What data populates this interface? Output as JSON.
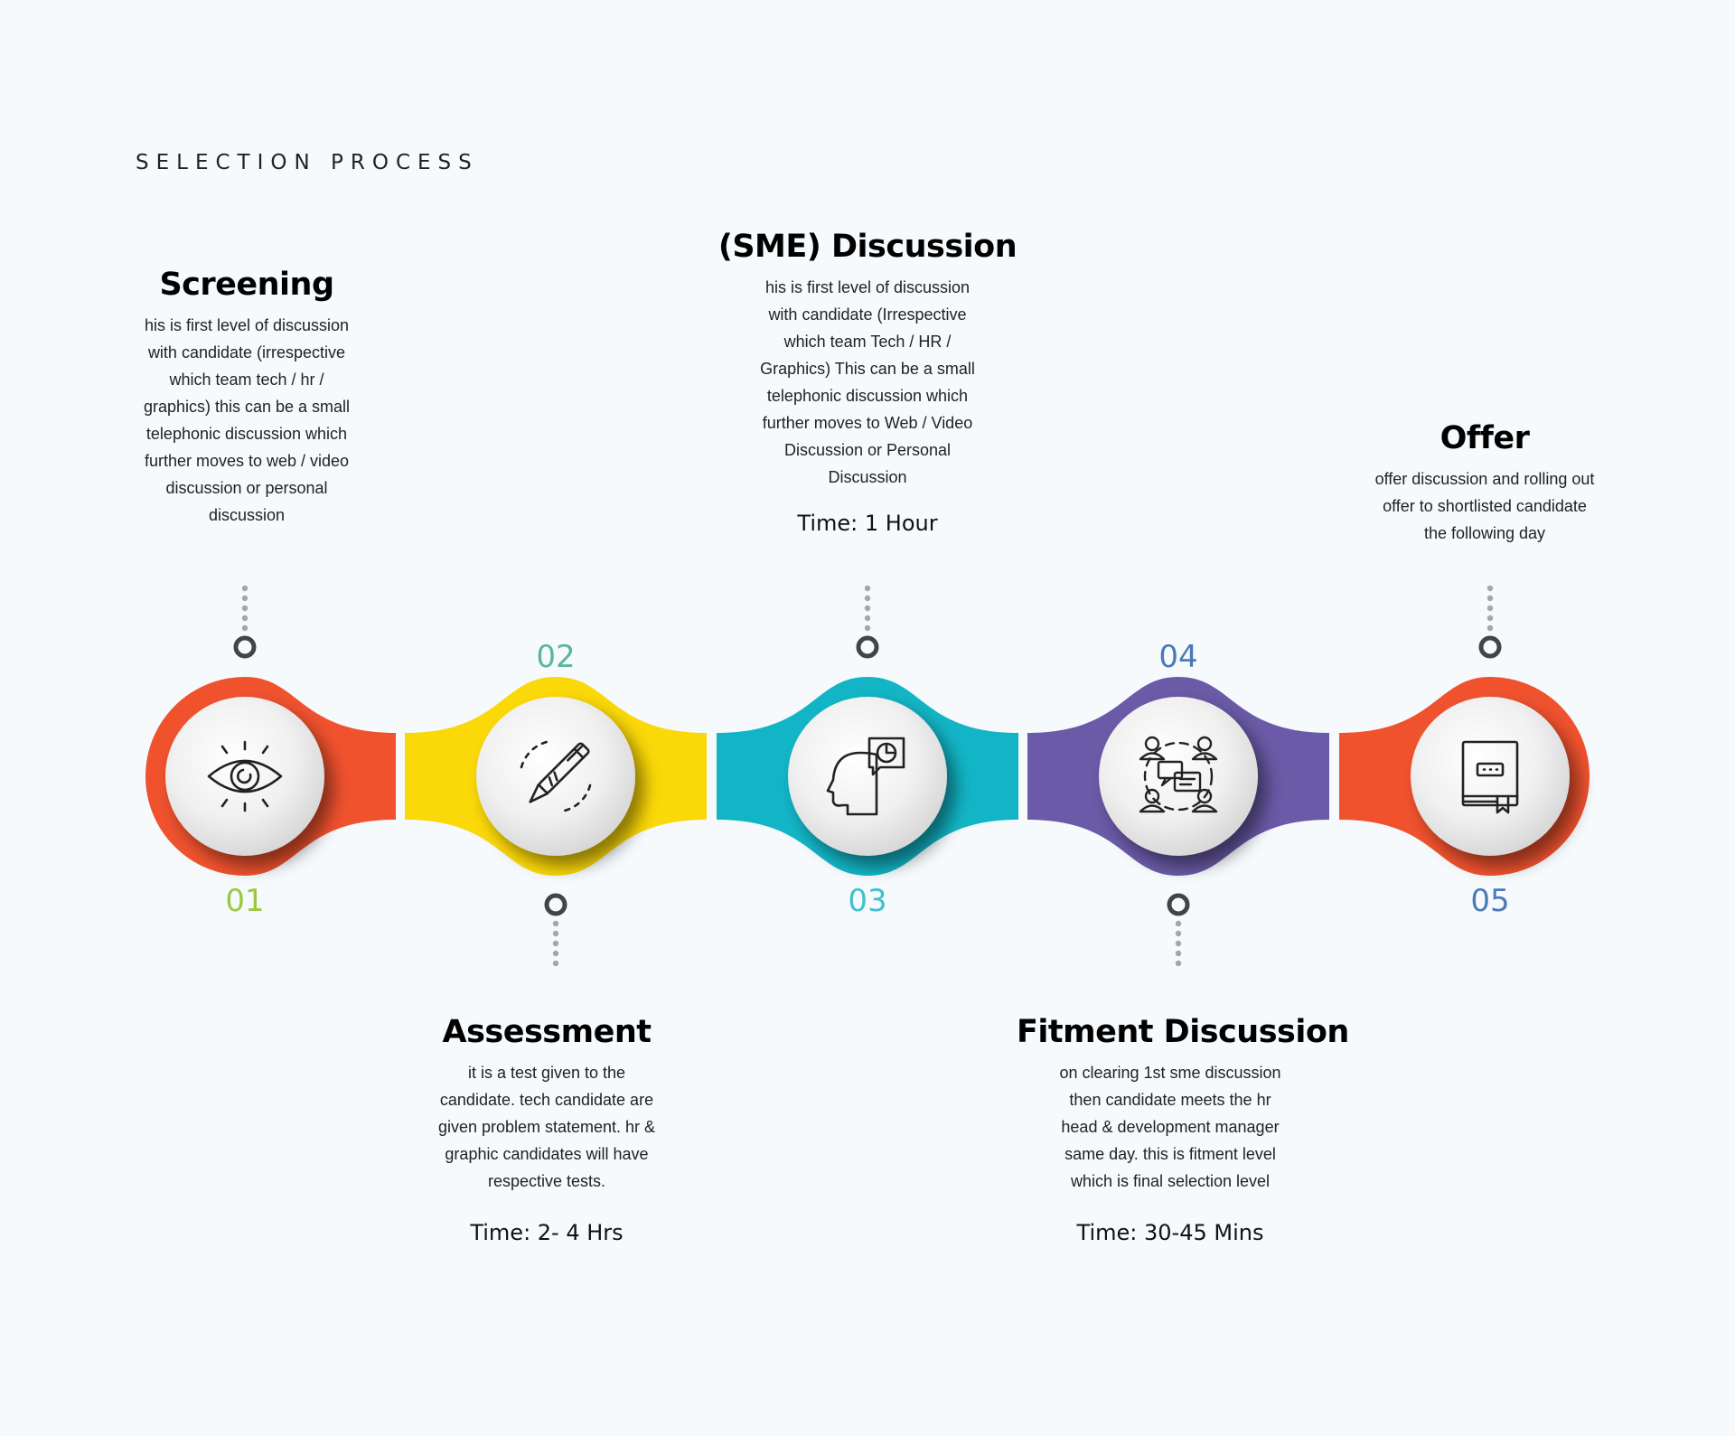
{
  "page": {
    "title": "SELECTION PROCESS"
  },
  "steps": [
    {
      "number": "01",
      "title": "Screening",
      "description": "his is first level of discussion with candidate (irrespective which team tech / hr / graphics) this can be a small telephonic discussion which further moves to web / video discussion or personal discussion",
      "time": "",
      "color": "#f0522e",
      "number_color": "#9cc841",
      "icon": "eye-icon"
    },
    {
      "number": "02",
      "title": "Assessment",
      "description": "it is a test given to the candidate. tech candidate are given problem statement. hr & graphic candidates will have respective tests.",
      "time": "Time: 2- 4 Hrs",
      "color": "#fbd808",
      "number_color": "#58b79a",
      "icon": "pen-icon"
    },
    {
      "number": "03",
      "title": "(SME) Discussion",
      "description": "his is first level of discussion with candidate (Irrespective which team Tech / HR / Graphics) This can be a small telephonic discussion which further moves to Web / Video Discussion or Personal Discussion",
      "time": "Time: 1 Hour",
      "color": "#12b5c6",
      "number_color": "#3fc1cf",
      "icon": "head-chart-icon"
    },
    {
      "number": "04",
      "title": "Fitment Discussion",
      "description": "on clearing 1st sme discussion then candidate meets the hr head & development manager same day. this is fitment level which is final selection level",
      "time": "Time: 30-45 Mins",
      "color": "#6a5aa7",
      "number_color": "#4a7ab7",
      "icon": "team-discussion-icon"
    },
    {
      "number": "05",
      "title": "Offer",
      "description": "offer discussion and rolling out offer to shortlisted candidate the following day",
      "time": "",
      "color": "#f0522e",
      "number_color": "#4a7ab7",
      "icon": "book-icon"
    }
  ]
}
